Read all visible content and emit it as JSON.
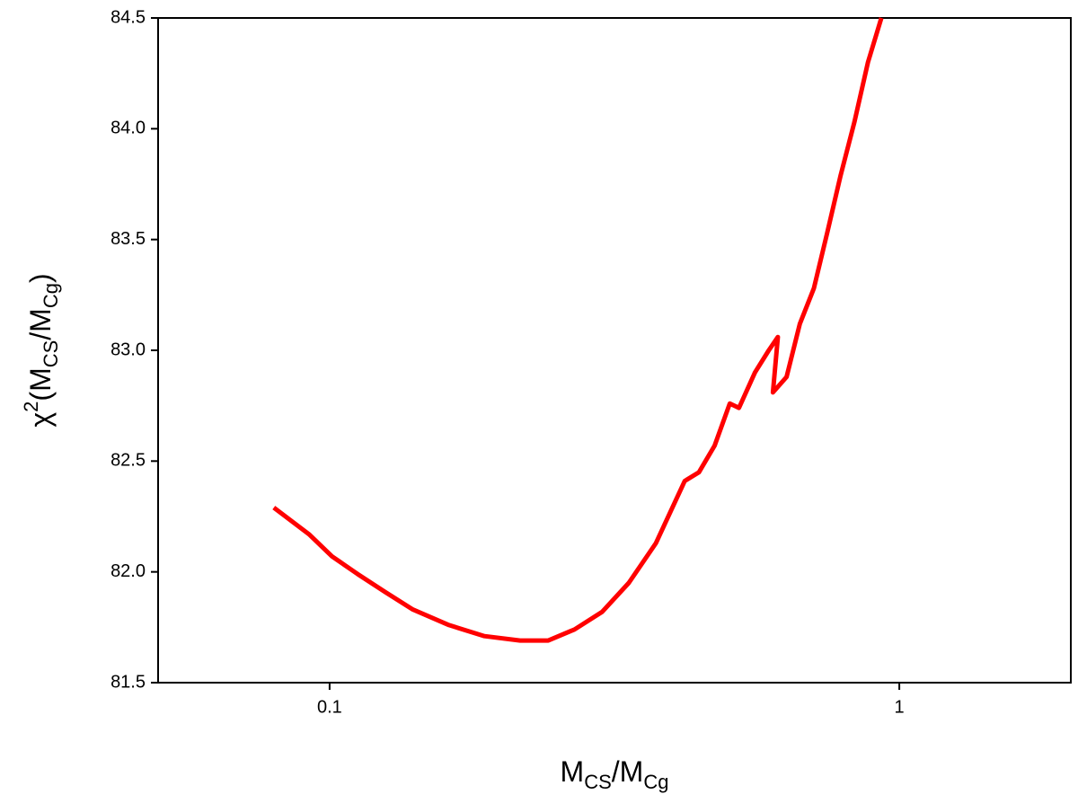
{
  "chart_data": {
    "type": "line",
    "x_label": [
      "M",
      "CS",
      "/M",
      "Cg"
    ],
    "y_label": [
      "χ",
      "2",
      "(M",
      "CS",
      "/M",
      "Cg",
      ")"
    ],
    "x": [
      0.0798,
      0.092,
      0.101,
      0.112,
      0.125,
      0.14,
      0.162,
      0.187,
      0.216,
      0.242,
      0.269,
      0.301,
      0.335,
      0.374,
      0.42,
      0.445,
      0.474,
      0.504,
      0.523,
      0.558,
      0.59,
      0.612,
      0.6,
      0.634,
      0.669,
      0.708,
      0.747,
      0.789,
      0.834,
      0.881,
      0.93
    ],
    "series": [
      {
        "color": "#ff0000",
        "values": [
          82.29,
          82.17,
          82.07,
          81.99,
          81.91,
          81.83,
          81.76,
          81.71,
          81.69,
          81.69,
          81.74,
          81.82,
          81.95,
          82.13,
          82.41,
          82.45,
          82.57,
          82.76,
          82.74,
          82.9,
          83.0,
          83.06,
          82.81,
          82.88,
          83.12,
          83.28,
          83.53,
          83.79,
          84.03,
          84.3,
          84.5
        ]
      }
    ],
    "xlim": [
      0.05,
      2
    ],
    "xscale": "log",
    "xticks": [
      0.1,
      1
    ],
    "ylim": [
      81.5,
      84.5
    ],
    "yticks": [
      81.5,
      {
        "value": 82,
        "label": "82.0"
      },
      82.5,
      {
        "value": 83,
        "label": "83.0"
      },
      83.5,
      {
        "value": 84,
        "label": "84.0"
      },
      84.5
    ],
    "grid": false
  }
}
